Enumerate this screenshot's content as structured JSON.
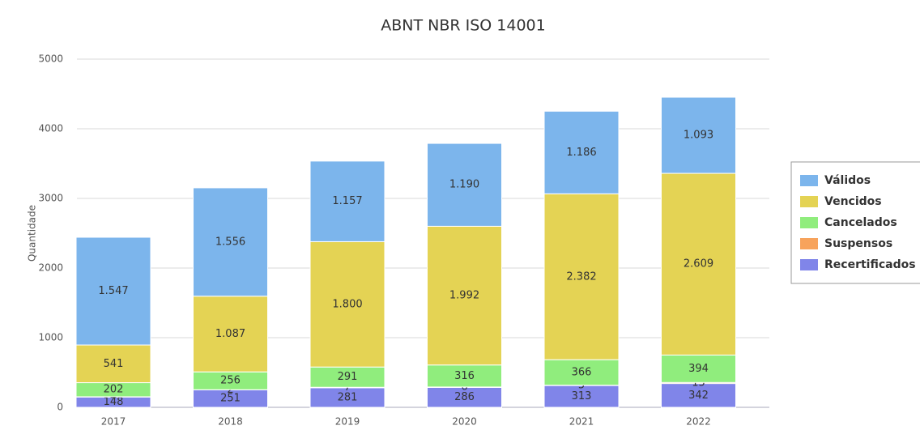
{
  "chart_data": {
    "type": "bar",
    "stacked": true,
    "title": "ABNT NBR ISO 14001",
    "y_label": "Quantidade",
    "categories": [
      "2017",
      "2018",
      "2019",
      "2020",
      "2021",
      "2022"
    ],
    "series": [
      {
        "name": "Recertificados",
        "color": "#8085e9",
        "values": [
          148,
          251,
          281,
          286,
          313,
          342
        ]
      },
      {
        "name": "Suspensos",
        "color": "#f7a35c",
        "values": [
          4,
          2,
          7,
          6,
          5,
          15
        ]
      },
      {
        "name": "Cancelados",
        "color": "#90ed7d",
        "values": [
          202,
          256,
          291,
          316,
          366,
          394
        ]
      },
      {
        "name": "Vencidos",
        "color": "#e4d354",
        "values": [
          541,
          1087,
          1800,
          1992,
          2382,
          2609
        ],
        "value_labels": [
          "541",
          "1.087",
          "1.800",
          "1.992",
          "2.382",
          "2.609"
        ]
      },
      {
        "name": "Válidos",
        "color": "#7cb5ec",
        "values": [
          1547,
          1556,
          1157,
          1190,
          1186,
          1093
        ],
        "value_labels": [
          "1.547",
          "1.556",
          "1.157",
          "1.190",
          "1.186",
          "1.093"
        ]
      }
    ],
    "ylim": [
      0,
      5000
    ],
    "yticks": [
      0,
      1000,
      2000,
      3000,
      4000,
      5000
    ],
    "grid": true,
    "legend": "right"
  }
}
